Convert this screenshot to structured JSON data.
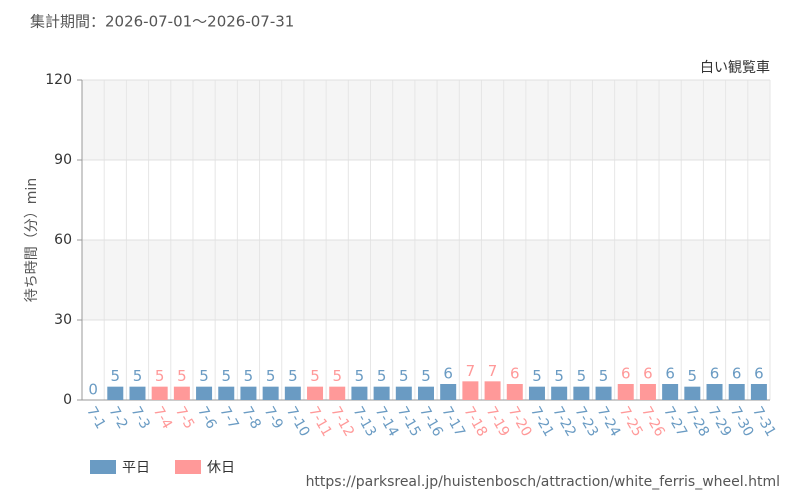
{
  "header": {
    "period": "集計期間：2026-07-01～2026-07-31"
  },
  "chart_data": {
    "type": "bar",
    "subtitle": "白い観覧車",
    "y_label": "待ち時間（分）min",
    "categories": [
      "7-1",
      "7-2",
      "7-3",
      "7-4",
      "7-5",
      "7-6",
      "7-7",
      "7-8",
      "7-9",
      "7-10",
      "7-11",
      "7-12",
      "7-13",
      "7-14",
      "7-15",
      "7-16",
      "7-17",
      "7-18",
      "7-19",
      "7-20",
      "7-21",
      "7-22",
      "7-23",
      "7-24",
      "7-25",
      "7-26",
      "7-27",
      "7-28",
      "7-29",
      "7-30",
      "7-31"
    ],
    "series": [
      {
        "name": "平日",
        "color": "#6a9bc3",
        "values": [
          0,
          5,
          5,
          null,
          null,
          5,
          5,
          5,
          5,
          5,
          null,
          null,
          5,
          5,
          5,
          5,
          6,
          null,
          null,
          null,
          5,
          5,
          5,
          5,
          null,
          null,
          6,
          5,
          6,
          6,
          6
        ]
      },
      {
        "name": "休日",
        "color": "#ff9999",
        "values": [
          null,
          null,
          null,
          5,
          5,
          null,
          null,
          null,
          null,
          null,
          5,
          5,
          null,
          null,
          null,
          null,
          null,
          7,
          7,
          6,
          null,
          null,
          null,
          null,
          6,
          6,
          null,
          null,
          null,
          null,
          null
        ]
      }
    ],
    "ylim": [
      0,
      120
    ],
    "yticks": [
      0,
      30,
      60,
      90,
      120
    ],
    "grid": true
  },
  "footer": {
    "source": "https://parksreal.jp/huistenbosch/attraction/white_ferris_wheel.html"
  }
}
